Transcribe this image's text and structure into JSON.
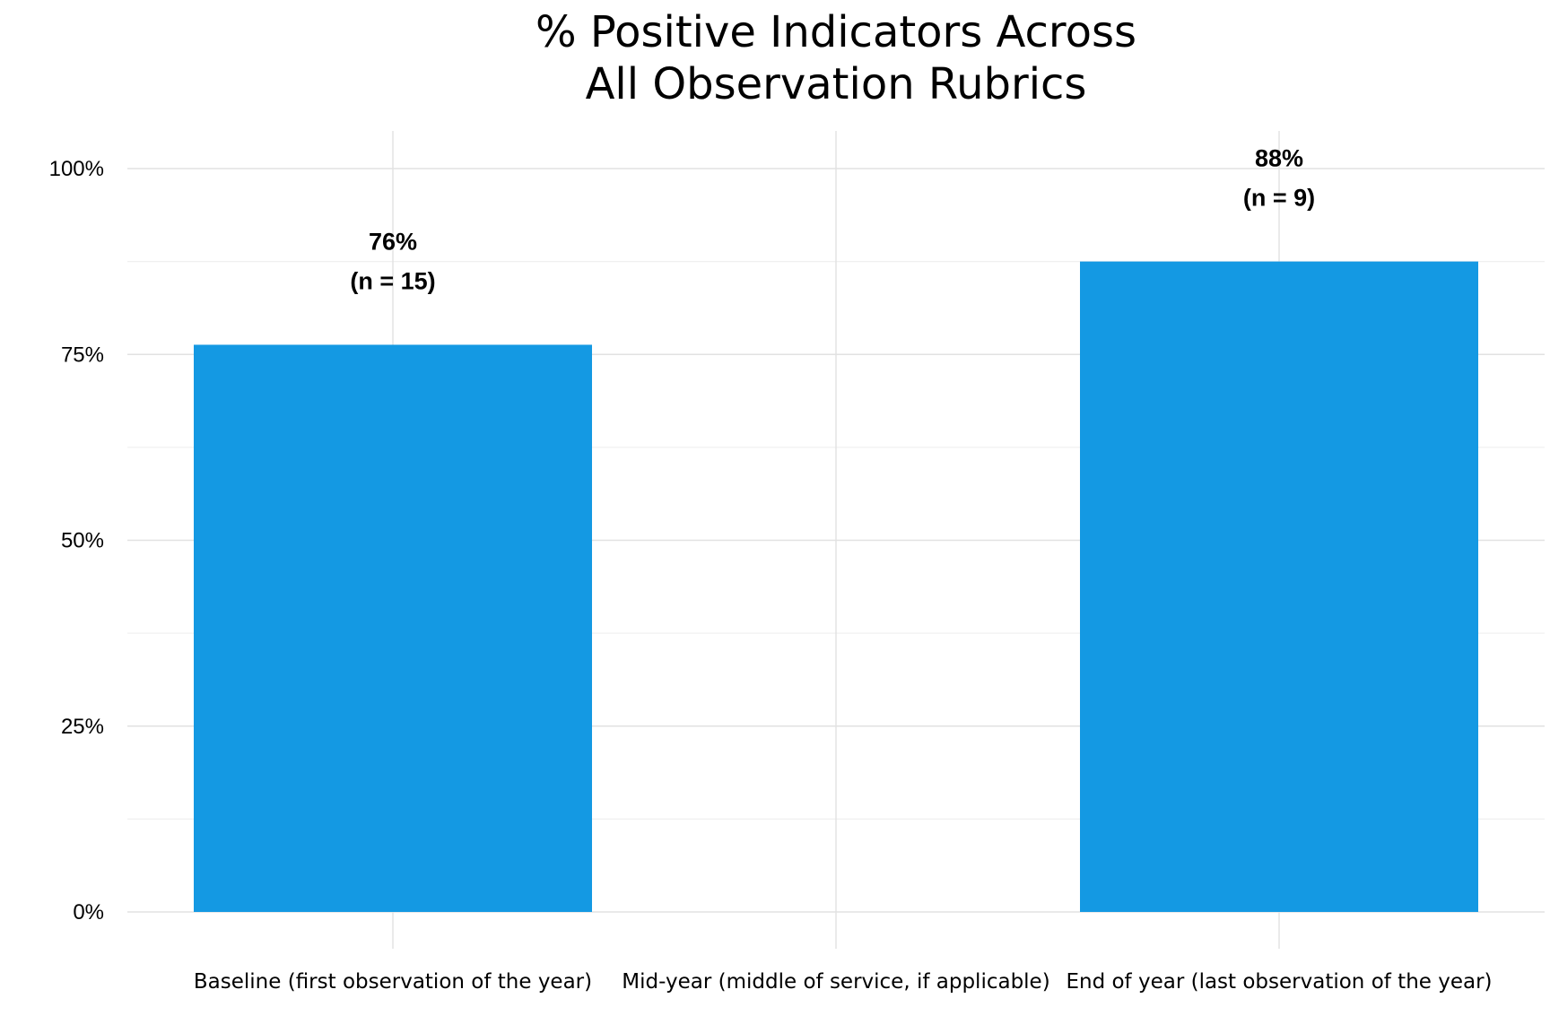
{
  "chart_data": {
    "type": "bar",
    "title_lines": [
      "% Positive Indicators Across",
      "All Observation Rubrics"
    ],
    "categories": [
      "Baseline (first observation of the year)",
      "Mid-year (middle of service, if applicable)",
      "End of year (last observation of the year)"
    ],
    "values": [
      76.3,
      null,
      87.5
    ],
    "data_labels": [
      [
        "76%",
        "(n = 15)"
      ],
      null,
      [
        "88%",
        "(n = 9)"
      ]
    ],
    "ylim": [
      0,
      100
    ],
    "yticks": [
      0,
      25,
      50,
      75,
      100
    ],
    "ytick_labels": [
      "0%",
      "25%",
      "50%",
      "75%",
      "100%"
    ],
    "xlabel": "",
    "ylabel": "",
    "grid": true,
    "colors": {
      "bar": "#1499e3",
      "grid_major": "#e2e2e2",
      "grid_minor": "#f0f0f0"
    }
  }
}
